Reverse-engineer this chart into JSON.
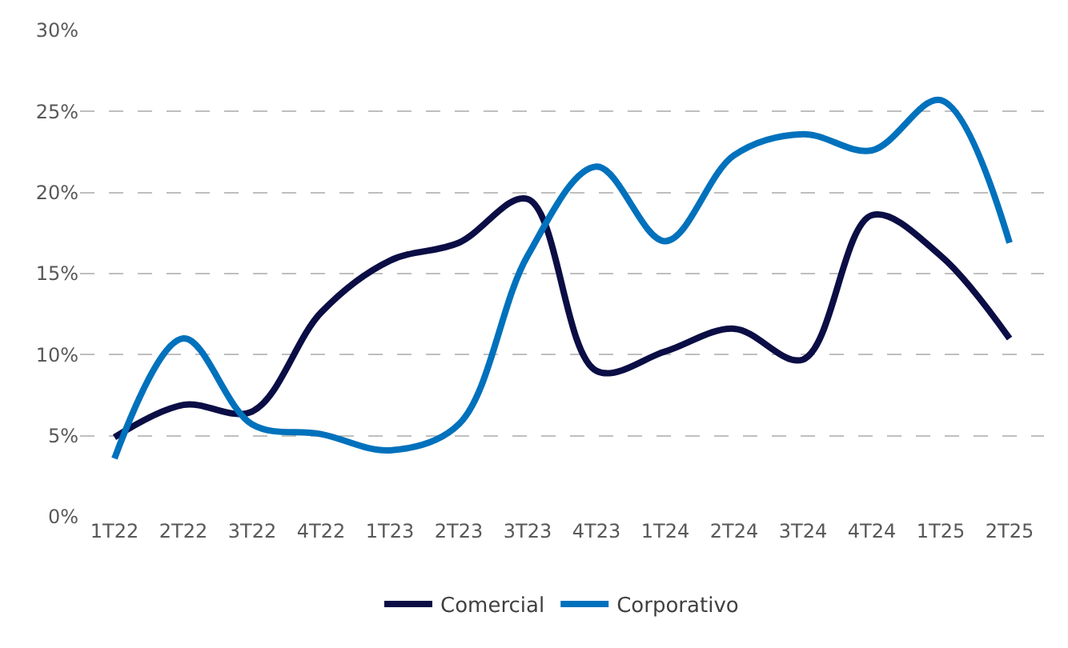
{
  "chart_data": {
    "type": "line",
    "categories": [
      "1T22",
      "2T22",
      "3T22",
      "4T22",
      "1T23",
      "2T23",
      "3T23",
      "4T23",
      "1T24",
      "2T24",
      "3T24",
      "4T24",
      "1T25",
      "2T25"
    ],
    "series": [
      {
        "name": "Comercial",
        "color": "#0b0d45",
        "values": [
          4.9,
          6.9,
          6.5,
          12.6,
          15.8,
          16.9,
          19.6,
          9.0,
          10.2,
          11.6,
          9.7,
          18.6,
          16.1,
          11.0
        ]
      },
      {
        "name": "Corporativo",
        "color": "#0071bc",
        "values": [
          3.6,
          11.0,
          5.7,
          5.1,
          4.1,
          5.7,
          16.1,
          21.6,
          17.0,
          22.3,
          23.6,
          22.6,
          25.7,
          16.9
        ]
      }
    ],
    "ylim": [
      0,
      30
    ],
    "yticks": [
      {
        "value": 0,
        "label": "0%"
      },
      {
        "value": 5,
        "label": "5%"
      },
      {
        "value": 10,
        "label": "10%"
      },
      {
        "value": 15,
        "label": "15%"
      },
      {
        "value": 20,
        "label": "20%"
      },
      {
        "value": 25,
        "label": "25%"
      },
      {
        "value": 30,
        "label": "30%"
      }
    ],
    "grid": "y",
    "legend": "bottom",
    "marker": "none",
    "line_style": "solid"
  }
}
